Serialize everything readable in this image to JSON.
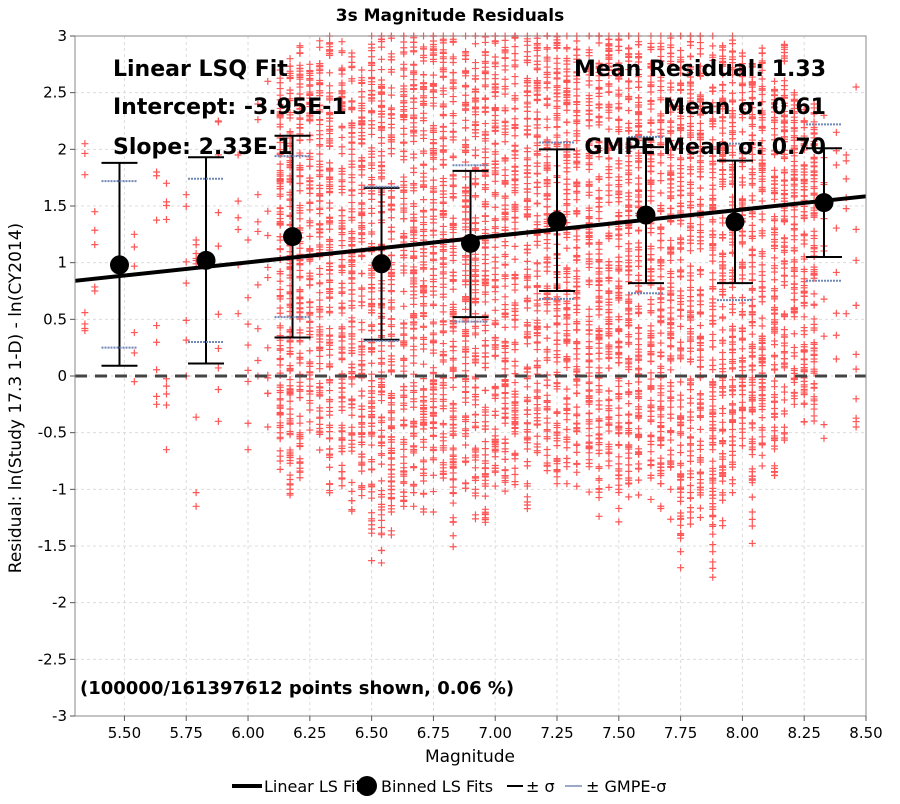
{
  "chart_data": {
    "type": "scatter",
    "title": "3s Magnitude Residuals",
    "xlabel": "Magnitude",
    "ylabel": "Residual: ln(Study 17.3 1-D) - ln(CY2014)",
    "xlim": [
      5.3,
      8.5
    ],
    "ylim": [
      -3,
      3
    ],
    "x_ticks": [
      "5.50",
      "5.75",
      "6.00",
      "6.25",
      "6.50",
      "6.75",
      "7.00",
      "7.25",
      "7.50",
      "7.75",
      "8.00",
      "8.25",
      "8.50"
    ],
    "y_ticks": [
      "-3",
      "-2.5",
      "-2",
      "-1.5",
      "-1",
      "-0.5",
      "0",
      "0.5",
      "1",
      "1.5",
      "2",
      "2.5",
      "3"
    ],
    "grid": true,
    "legend_position": "bottom",
    "colors": {
      "scatter": "#ff5555",
      "fit_line": "#000000",
      "binned_marker": "#000000",
      "sigma_bar": "#000000",
      "gmpe_sigma": "#6f88b8",
      "zero_line": "#444444"
    },
    "annotations": {
      "fit_name": "Linear LSQ Fit",
      "intercept": "Intercept: -3.95E-1",
      "slope": "Slope: 2.33E-1",
      "mean_residual": "Mean Residual: 1.33",
      "mean_sigma": "Mean σ: 0.61",
      "gmpe_mean_sigma": "GMPE Mean σ: 0.70",
      "points_shown": "(100000/161397612 points shown, 0.06 %)"
    },
    "linear_fit": {
      "intercept": -0.395,
      "slope": 0.233
    },
    "binned_fits": [
      {
        "x": 5.48,
        "y": 0.98,
        "sigma_low": 0.09,
        "sigma_high": 1.88,
        "gmpe_low": 0.25,
        "gmpe_high": 1.72
      },
      {
        "x": 5.83,
        "y": 1.02,
        "sigma_low": 0.11,
        "sigma_high": 1.93,
        "gmpe_low": 0.3,
        "gmpe_high": 1.74
      },
      {
        "x": 6.18,
        "y": 1.23,
        "sigma_low": 0.34,
        "sigma_high": 2.12,
        "gmpe_low": 0.52,
        "gmpe_high": 1.94
      },
      {
        "x": 6.54,
        "y": 0.99,
        "sigma_low": 0.32,
        "sigma_high": 1.66,
        "gmpe_low": 0.31,
        "gmpe_high": 1.67
      },
      {
        "x": 6.9,
        "y": 1.17,
        "sigma_low": 0.52,
        "sigma_high": 1.81,
        "gmpe_low": 0.48,
        "gmpe_high": 1.86
      },
      {
        "x": 7.25,
        "y": 1.37,
        "sigma_low": 0.75,
        "sigma_high": 2.0,
        "gmpe_low": 0.68,
        "gmpe_high": 2.06
      },
      {
        "x": 7.61,
        "y": 1.42,
        "sigma_low": 0.82,
        "sigma_high": 2.02,
        "gmpe_low": 0.73,
        "gmpe_high": 2.11
      },
      {
        "x": 7.97,
        "y": 1.36,
        "sigma_low": 0.82,
        "sigma_high": 1.9,
        "gmpe_low": 0.67,
        "gmpe_high": 2.05
      },
      {
        "x": 8.33,
        "y": 1.53,
        "sigma_low": 1.05,
        "sigma_high": 2.01,
        "gmpe_low": 0.84,
        "gmpe_high": 2.22
      }
    ],
    "scatter_columns": [
      {
        "x": 5.34,
        "ymin": 0.4,
        "ymax": 2.05
      },
      {
        "x": 5.38,
        "ymin": 0.75,
        "ymax": 1.45
      },
      {
        "x": 5.54,
        "ymin": -0.05,
        "ymax": 1.25
      },
      {
        "x": 5.63,
        "ymin": -0.25,
        "ymax": 1.8
      },
      {
        "x": 5.67,
        "ymin": -0.65,
        "ymax": 1.7
      },
      {
        "x": 5.75,
        "ymin": 0.0,
        "ymax": 1.6
      },
      {
        "x": 5.79,
        "ymin": -1.15,
        "ymax": 1.2
      },
      {
        "x": 5.88,
        "ymin": -0.4,
        "ymax": 2.25
      },
      {
        "x": 5.96,
        "ymin": 0.55,
        "ymax": 1.95
      },
      {
        "x": 6.0,
        "ymin": -0.65,
        "ymax": 1.2
      },
      {
        "x": 6.04,
        "ymin": 0.0,
        "ymax": 2.4
      },
      {
        "x": 6.08,
        "ymin": -0.45,
        "ymax": 2.6
      },
      {
        "x": 6.13,
        "ymin": -0.75,
        "ymax": 2.7
      },
      {
        "x": 6.17,
        "ymin": -1.05,
        "ymax": 2.8
      },
      {
        "x": 6.21,
        "ymin": -0.85,
        "ymax": 2.9
      },
      {
        "x": 6.25,
        "ymin": -0.3,
        "ymax": 2.75
      },
      {
        "x": 6.29,
        "ymin": -0.5,
        "ymax": 2.9
      },
      {
        "x": 6.33,
        "ymin": -0.95,
        "ymax": 3.0
      },
      {
        "x": 6.38,
        "ymin": -0.9,
        "ymax": 2.95
      },
      {
        "x": 6.42,
        "ymin": -1.1,
        "ymax": 2.85
      },
      {
        "x": 6.46,
        "ymin": -1.0,
        "ymax": 2.7
      },
      {
        "x": 6.5,
        "ymin": -1.35,
        "ymax": 3.0
      },
      {
        "x": 6.54,
        "ymin": -1.4,
        "ymax": 3.0
      },
      {
        "x": 6.58,
        "ymin": -1.2,
        "ymax": 3.0
      },
      {
        "x": 6.63,
        "ymin": -1.1,
        "ymax": 3.0
      },
      {
        "x": 6.67,
        "ymin": -1.15,
        "ymax": 3.0
      },
      {
        "x": 6.71,
        "ymin": -1.2,
        "ymax": 3.0
      },
      {
        "x": 6.75,
        "ymin": -1.2,
        "ymax": 3.0
      },
      {
        "x": 6.79,
        "ymin": -0.9,
        "ymax": 3.0
      },
      {
        "x": 6.83,
        "ymin": -1.25,
        "ymax": 3.0
      },
      {
        "x": 6.88,
        "ymin": -0.95,
        "ymax": 3.0
      },
      {
        "x": 6.92,
        "ymin": -1.0,
        "ymax": 3.0
      },
      {
        "x": 6.96,
        "ymin": -1.25,
        "ymax": 3.0
      },
      {
        "x": 7.0,
        "ymin": -0.85,
        "ymax": 3.0
      },
      {
        "x": 7.04,
        "ymin": -0.9,
        "ymax": 3.0
      },
      {
        "x": 7.08,
        "ymin": -0.7,
        "ymax": 3.0
      },
      {
        "x": 7.13,
        "ymin": -0.95,
        "ymax": 3.0
      },
      {
        "x": 7.17,
        "ymin": -0.6,
        "ymax": 3.0
      },
      {
        "x": 7.21,
        "ymin": -0.7,
        "ymax": 3.0
      },
      {
        "x": 7.25,
        "ymin": -0.95,
        "ymax": 3.0
      },
      {
        "x": 7.29,
        "ymin": -0.8,
        "ymax": 3.0
      },
      {
        "x": 7.33,
        "ymin": -0.85,
        "ymax": 3.0
      },
      {
        "x": 7.38,
        "ymin": -0.8,
        "ymax": 3.0
      },
      {
        "x": 7.42,
        "ymin": -1.0,
        "ymax": 3.0
      },
      {
        "x": 7.46,
        "ymin": -0.75,
        "ymax": 3.0
      },
      {
        "x": 7.5,
        "ymin": -1.0,
        "ymax": 3.0
      },
      {
        "x": 7.54,
        "ymin": -0.9,
        "ymax": 3.0
      },
      {
        "x": 7.58,
        "ymin": -1.05,
        "ymax": 3.0
      },
      {
        "x": 7.63,
        "ymin": -0.9,
        "ymax": 3.0
      },
      {
        "x": 7.67,
        "ymin": -0.95,
        "ymax": 3.0
      },
      {
        "x": 7.71,
        "ymin": -1.0,
        "ymax": 3.0
      },
      {
        "x": 7.75,
        "ymin": -1.55,
        "ymax": 3.0
      },
      {
        "x": 7.79,
        "ymin": -1.2,
        "ymax": 3.0
      },
      {
        "x": 7.83,
        "ymin": -1.05,
        "ymax": 3.0
      },
      {
        "x": 7.88,
        "ymin": -1.55,
        "ymax": 3.0
      },
      {
        "x": 7.92,
        "ymin": -1.05,
        "ymax": 2.9
      },
      {
        "x": 7.96,
        "ymin": -0.95,
        "ymax": 3.0
      },
      {
        "x": 8.0,
        "ymin": -0.55,
        "ymax": 2.85
      },
      {
        "x": 8.04,
        "ymin": -1.2,
        "ymax": 2.75
      },
      {
        "x": 8.08,
        "ymin": -0.7,
        "ymax": 2.85
      },
      {
        "x": 8.13,
        "ymin": -0.85,
        "ymax": 2.6
      },
      {
        "x": 8.17,
        "ymin": -0.5,
        "ymax": 2.9
      },
      {
        "x": 8.21,
        "ymin": -0.25,
        "ymax": 2.5
      },
      {
        "x": 8.25,
        "ymin": -0.25,
        "ymax": 2.35
      },
      {
        "x": 8.29,
        "ymin": -0.25,
        "ymax": 2.4
      },
      {
        "x": 8.33,
        "ymin": -0.55,
        "ymax": 2.3
      },
      {
        "x": 8.38,
        "ymin": 0.15,
        "ymax": 2.15
      },
      {
        "x": 8.42,
        "ymin": 0.55,
        "ymax": 1.95
      },
      {
        "x": 8.46,
        "ymin": -0.45,
        "ymax": 2.55
      }
    ]
  },
  "legend": [
    {
      "label": "Linear LS Fit",
      "kind": "line"
    },
    {
      "label": "Binned LS Fits",
      "kind": "marker"
    },
    {
      "label": "± σ",
      "kind": "sigma"
    },
    {
      "label": "± GMPE-σ",
      "kind": "gmpe"
    }
  ]
}
